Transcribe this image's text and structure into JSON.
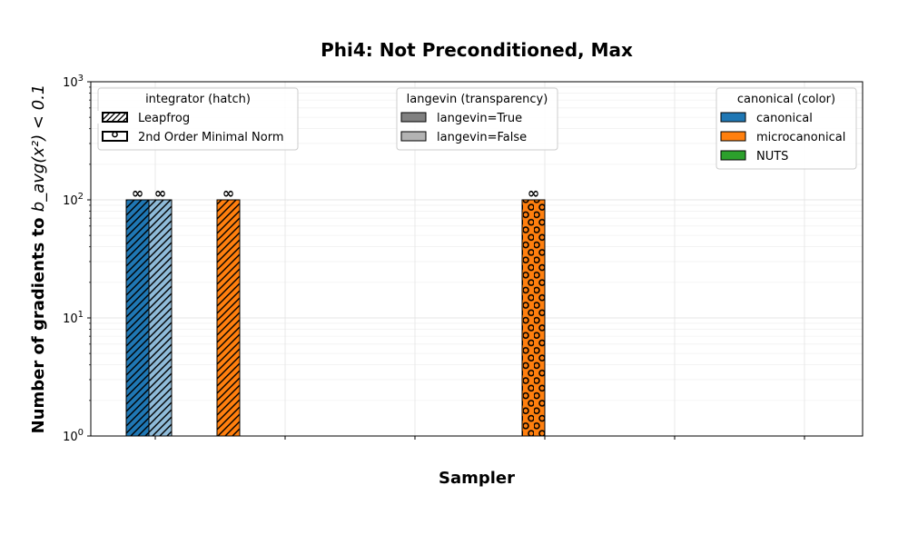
{
  "chart_data": {
    "type": "bar",
    "title": "Phi4: Not Preconditioned, Max",
    "xlabel": "Sampler",
    "ylabel": "Number of gradients to ",
    "ylabel_math": "b_avg(x²) < 0.1",
    "y_scale": "log",
    "ylim": [
      1,
      1000
    ],
    "y_ticks": [
      {
        "value": 1,
        "label": "10^0"
      },
      {
        "value": 10,
        "label": "10^1"
      },
      {
        "value": 100,
        "label": "10^2"
      },
      {
        "value": 1000,
        "label": "10^3"
      }
    ],
    "grid": true,
    "bars": [
      {
        "value": 100,
        "annotation": "∞",
        "color": "#1f77b4",
        "alpha": 1.0,
        "hatch": "diagonal"
      },
      {
        "value": 100,
        "annotation": "∞",
        "color": "#1f77b4",
        "alpha": 0.5,
        "hatch": "diagonal"
      },
      {
        "value": 100,
        "annotation": "∞",
        "color": "#ff7f0e",
        "alpha": 1.0,
        "hatch": "diagonal"
      },
      {
        "value": 100,
        "annotation": "∞",
        "color": "#ff7f0e",
        "alpha": 1.0,
        "hatch": "circles"
      }
    ],
    "legends": [
      {
        "title": "integrator (hatch)",
        "placement": "top-left",
        "entries": [
          {
            "label": "Leapfrog",
            "hatch": "diagonal"
          },
          {
            "label": "2nd Order Minimal Norm",
            "hatch": "circles"
          }
        ]
      },
      {
        "title": "langevin (transparency)",
        "placement": "top-center",
        "entries": [
          {
            "label": "langevin=True",
            "color": "#808080"
          },
          {
            "label": "langevin=False",
            "color": "#b3b3b3"
          }
        ]
      },
      {
        "title": "canonical (color)",
        "placement": "top-right",
        "entries": [
          {
            "label": "canonical",
            "color": "#1f77b4"
          },
          {
            "label": "microcanonical",
            "color": "#ff7f0e"
          },
          {
            "label": "NUTS",
            "color": "#2ca02c"
          }
        ]
      }
    ]
  }
}
